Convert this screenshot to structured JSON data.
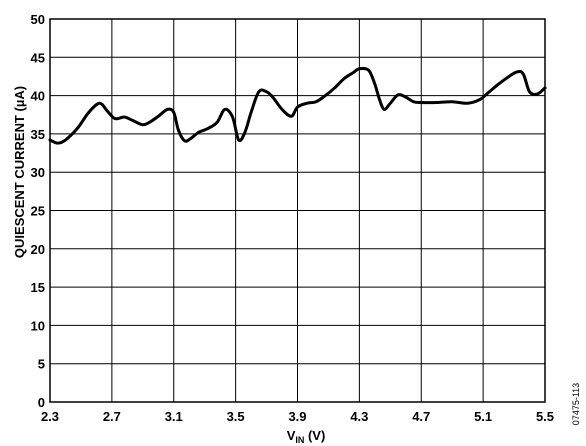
{
  "chart_data": {
    "type": "line",
    "xlabel_main": "V",
    "xlabel_sub": "IN",
    "xlabel_unit": " (V)",
    "ylabel": "QUIESCENT CURRENT (µA)",
    "figure_id": "07475-113",
    "xlim": [
      2.3,
      5.5
    ],
    "ylim": [
      0,
      50
    ],
    "x_ticks": [
      "2.3",
      "2.7",
      "3.1",
      "3.5",
      "3.9",
      "4.3",
      "4.7",
      "5.1",
      "5.5"
    ],
    "y_ticks": [
      "0",
      "5",
      "10",
      "15",
      "20",
      "25",
      "30",
      "35",
      "40",
      "45",
      "50"
    ],
    "grid": true,
    "series": [
      {
        "x": [
          2.3,
          2.35,
          2.4,
          2.48,
          2.55,
          2.62,
          2.67,
          2.72,
          2.78,
          2.83,
          2.9,
          2.95,
          3.0,
          3.06,
          3.1,
          3.13,
          3.17,
          3.21,
          3.26,
          3.32,
          3.38,
          3.43,
          3.48,
          3.52,
          3.56,
          3.6,
          3.65,
          3.7,
          3.74,
          3.8,
          3.86,
          3.9,
          3.96,
          4.02,
          4.08,
          4.14,
          4.2,
          4.26,
          4.3,
          4.36,
          4.4,
          4.43,
          4.46,
          4.5,
          4.55,
          4.6,
          4.65,
          4.7,
          4.8,
          4.9,
          5.0,
          5.08,
          5.14,
          5.2,
          5.26,
          5.32,
          5.36,
          5.4,
          5.45,
          5.5
        ],
        "y": [
          34.2,
          33.8,
          34.2,
          35.8,
          37.8,
          39.0,
          38.0,
          37.0,
          37.2,
          36.8,
          36.2,
          36.6,
          37.3,
          38.2,
          37.8,
          35.5,
          34.1,
          34.4,
          35.2,
          35.7,
          36.5,
          38.2,
          37.2,
          34.2,
          35.2,
          37.8,
          40.5,
          40.5,
          39.8,
          38.2,
          37.3,
          38.5,
          39.0,
          39.2,
          40.0,
          41.0,
          42.2,
          43.0,
          43.5,
          43.3,
          41.5,
          39.5,
          38.2,
          39.0,
          40.1,
          39.8,
          39.2,
          39.1,
          39.1,
          39.2,
          39.0,
          39.5,
          40.5,
          41.5,
          42.4,
          43.1,
          42.8,
          40.5,
          40.2,
          41.0
        ]
      }
    ]
  }
}
